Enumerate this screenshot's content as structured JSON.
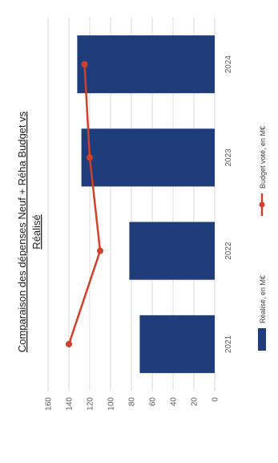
{
  "chart_data": {
    "type": "bar",
    "title_line1": "Comparaison des dépenses Neuf + Réha Budget vs",
    "title_line2": "Réalisé",
    "categories": [
      "2021",
      "2022",
      "2023",
      "2024"
    ],
    "series": [
      {
        "name": "Réalisé, en M€",
        "type": "bar",
        "color": "#1f3d7a",
        "values": [
          72,
          82,
          128,
          132
        ]
      },
      {
        "name": "Budget voté, en M€",
        "type": "line",
        "color": "#d0402a",
        "values": [
          140,
          110,
          120,
          125
        ]
      }
    ],
    "ylim": [
      0,
      160
    ],
    "yticks": [
      0,
      20,
      40,
      60,
      80,
      100,
      120,
      140,
      160
    ],
    "grid": true,
    "legend_position": "bottom"
  }
}
